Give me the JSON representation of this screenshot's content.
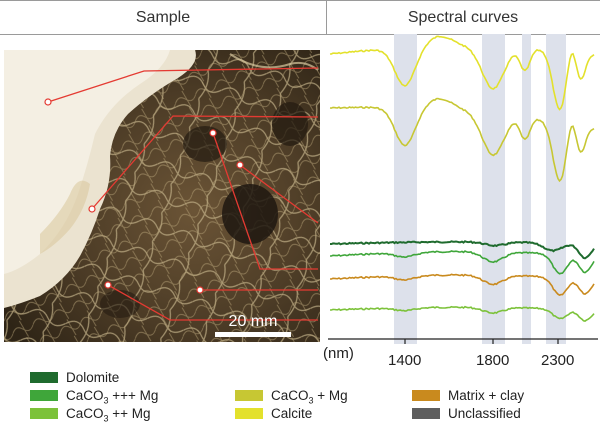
{
  "header": {
    "sample_title": "Sample",
    "curves_title": "Spectral curves"
  },
  "photo": {
    "scale_label": "20 mm"
  },
  "axis": {
    "unit_label": "(nm)",
    "ticks": [
      "1400",
      "1800",
      "2300"
    ]
  },
  "legend": [
    {
      "id": "dolomite",
      "prefix": "Dolomite",
      "sub": "",
      "suffix": "",
      "color": "#1f6b2e"
    },
    {
      "id": "caco3-mg3",
      "prefix": "CaCO",
      "sub": "3",
      "suffix": " +++ Mg",
      "color": "#3fa63a"
    },
    {
      "id": "caco3-mg2",
      "prefix": "CaCO",
      "sub": "3",
      "suffix": " ++ Mg",
      "color": "#7cc23a"
    },
    {
      "id": "caco3-mg1",
      "prefix": "CaCO",
      "sub": "3",
      "suffix": " + Mg",
      "color": "#c7c733"
    },
    {
      "id": "calcite",
      "prefix": "Calcite",
      "sub": "",
      "suffix": "",
      "color": "#e3e12c"
    },
    {
      "id": "matrix-clay",
      "prefix": "Matrix + clay",
      "sub": "",
      "suffix": "",
      "color": "#c98a1e"
    },
    {
      "id": "unclassified",
      "prefix": "Unclassified",
      "sub": "",
      "suffix": "",
      "color": "#5e5e5e"
    }
  ]
}
